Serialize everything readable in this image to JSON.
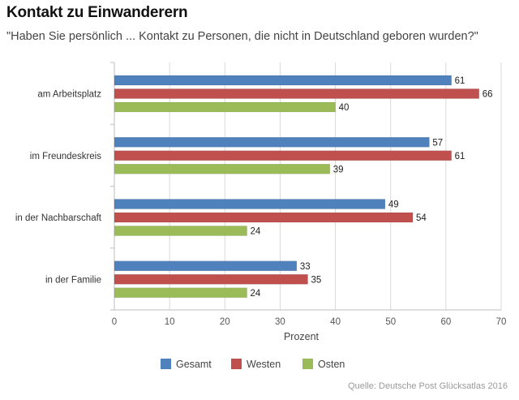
{
  "header": {
    "title": "Kontakt zu Einwanderern",
    "subtitle": "\"Haben Sie persönlich ... Kontakt zu Personen, die nicht in Deutschland geboren wurden?\""
  },
  "source": "Quelle: Deutsche Post Glücksatlas 2016",
  "chart_data": {
    "type": "bar",
    "orientation": "horizontal",
    "title": "Kontakt zu Einwanderern",
    "subtitle": "\"Haben Sie persönlich ... Kontakt zu Personen, die nicht in Deutschland geboren wurden?\"",
    "categories": [
      "am Arbeitsplatz",
      "im Freundeskreis",
      "in der Nachbarschaft",
      "in der Familie"
    ],
    "series": [
      {
        "name": "Gesamt",
        "color": "#4f81bd",
        "values": [
          61,
          57,
          49,
          33
        ]
      },
      {
        "name": "Westen",
        "color": "#c0504d",
        "values": [
          66,
          61,
          54,
          35
        ]
      },
      {
        "name": "Osten",
        "color": "#9bbb59",
        "values": [
          40,
          39,
          24,
          24
        ]
      }
    ],
    "xlabel": "Prozent",
    "ylabel": "",
    "xlim": [
      0,
      70
    ],
    "ticks": [
      0,
      10,
      20,
      30,
      40,
      50,
      60,
      70
    ],
    "grid": true,
    "legend_position": "bottom",
    "data_labels": true
  }
}
